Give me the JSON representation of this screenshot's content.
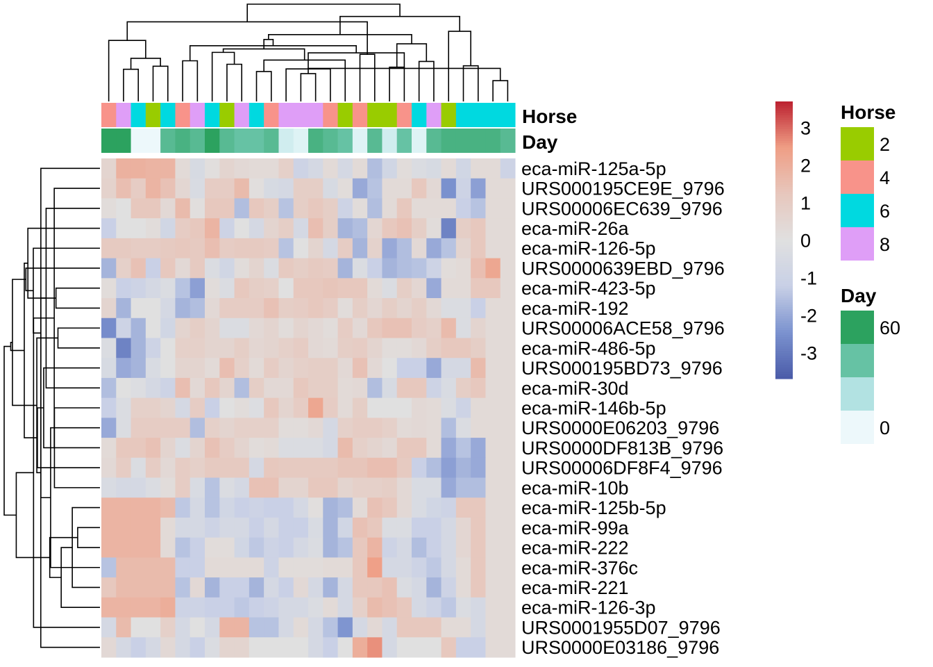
{
  "chart_data": {
    "type": "heatmap",
    "rows": [
      "eca-miR-125a-5p",
      "URS000195CE9E_9796",
      "URS00006EC639_9796",
      "eca-miR-26a",
      "eca-miR-126-5p",
      "URS0000639EBD_9796",
      "eca-miR-423-5p",
      "eca-miR-192",
      "URS00006ACE58_9796",
      "eca-miR-486-5p",
      "URS000195BD73_9796",
      "eca-miR-30d",
      "eca-miR-146b-5p",
      "URS0000E06203_9796",
      "URS0000DF813B_9796",
      "URS00006DF8F4_9796",
      "eca-miR-10b",
      "eca-miR-125b-5p",
      "eca-miR-99a",
      "eca-miR-222",
      "eca-miR-376c",
      "eca-miR-221",
      "eca-miR-126-3p",
      "URS0001955D07_9796",
      "URS0000E03186_9796"
    ],
    "values": [
      [
        0.6,
        1.9,
        1.9,
        1.8,
        1.8,
        0.3,
        -0.5,
        0.1,
        0.6,
        0.4,
        0.3,
        0.3,
        0.8,
        -1.0,
        -0.6,
        0.3,
        -0.6,
        0.3,
        -1.6,
        -0.8,
        0.2,
        -0.3,
        -0.5,
        0.3,
        -0.8,
        0.3,
        0.3,
        -1.0
      ],
      [
        0.7,
        1.5,
        1.0,
        1.8,
        1.4,
        0.5,
        -0.4,
        1.0,
        1.0,
        1.6,
        0.1,
        -0.5,
        -0.6,
        0.9,
        0.9,
        -0.5,
        0.2,
        -2.0,
        -1.5,
        0.3,
        0.3,
        1.2,
        0.4,
        -2.5,
        -1.0,
        -2.2,
        0.3,
        0.3
      ],
      [
        0.2,
        0.0,
        1.2,
        1.2,
        0.4,
        1.6,
        0.1,
        1.2,
        1.2,
        -1.6,
        1.2,
        0.9,
        -1.5,
        0.9,
        1.2,
        0.9,
        -1.0,
        0.2,
        -1.6,
        0.3,
        1.2,
        0.3,
        0.3,
        0.3,
        -1.2,
        -1.5,
        0.3,
        0.3
      ],
      [
        -1.2,
        0.0,
        0.0,
        0.2,
        -0.8,
        1.0,
        1.2,
        1.8,
        -1.0,
        0.0,
        -0.6,
        0.6,
        0.9,
        -0.6,
        1.5,
        0.9,
        -1.8,
        -1.6,
        0.5,
        1.2,
        1.4,
        0.9,
        0.2,
        -2.8,
        0.9,
        1.2,
        0.3,
        0.3
      ],
      [
        1.1,
        1.1,
        1.0,
        1.0,
        1.1,
        1.2,
        1.1,
        1.5,
        1.0,
        1.1,
        1.1,
        1.0,
        -1.5,
        0.0,
        0.6,
        -0.6,
        1.0,
        -1.8,
        0.7,
        -2.0,
        -1.6,
        0.4,
        -2.0,
        -1.5,
        0.6,
        1.2,
        0.3,
        0.3
      ],
      [
        -1.8,
        0.8,
        1.4,
        -1.2,
        1.2,
        0.4,
        1.1,
        -0.3,
        -0.8,
        0.2,
        0.6,
        -0.3,
        1.1,
        0.9,
        1.1,
        1.0,
        -1.8,
        -0.3,
        -1.2,
        -1.8,
        -1.6,
        -1.5,
        -1.0,
        0.2,
        0.3,
        1.5,
        2.2,
        0.3
      ],
      [
        0.2,
        -1.2,
        -1.0,
        -0.6,
        -0.3,
        -1.5,
        -2.2,
        0.2,
        -0.3,
        1.2,
        0.9,
        0.8,
        0.0,
        1.2,
        1.2,
        1.3,
        1.2,
        1.2,
        0.3,
        -0.3,
        0.9,
        0.5,
        -2.0,
        0.3,
        0.3,
        1.2,
        1.2,
        0.3
      ],
      [
        0.6,
        -1.8,
        0.0,
        0.0,
        -0.6,
        -1.8,
        -1.6,
        0.4,
        1.0,
        1.0,
        1.0,
        1.4,
        0.9,
        1.0,
        1.2,
        1.0,
        0.2,
        0.9,
        0.5,
        0.9,
        0.6,
        0.9,
        0.4,
        -0.3,
        -0.3,
        -1.2,
        0.3,
        0.3
      ],
      [
        -2.6,
        -1.0,
        -1.8,
        0.0,
        -0.8,
        0.6,
        0.9,
        0.6,
        -0.3,
        -0.3,
        0.4,
        0.6,
        0.2,
        0.6,
        0.4,
        0.2,
        1.0,
        0.4,
        1.2,
        1.4,
        1.4,
        1.0,
        0.8,
        1.6,
        -0.3,
        0.6,
        0.3,
        0.3
      ],
      [
        -0.3,
        -2.8,
        -1.8,
        -1.0,
        0.0,
        0.8,
        0.8,
        0.6,
        0.6,
        0.9,
        0.5,
        0.6,
        0.8,
        1.0,
        0.4,
        0.3,
        0.9,
        1.0,
        0.6,
        0.2,
        0.2,
        0.4,
        0.9,
        1.2,
        1.2,
        0.9,
        0.3,
        0.3
      ],
      [
        -0.5,
        -2.0,
        -1.8,
        -0.4,
        0.0,
        0.6,
        0.6,
        0.3,
        1.5,
        0.8,
        0.3,
        1.0,
        0.6,
        0.8,
        0.9,
        0.9,
        0.4,
        1.4,
        0.4,
        0.0,
        -1.2,
        -1.2,
        -2.0,
        -0.6,
        -0.6,
        1.6,
        0.3,
        0.3
      ],
      [
        -1.6,
        0.0,
        -0.2,
        -0.6,
        -1.0,
        1.5,
        0.4,
        1.2,
        0.6,
        -1.6,
        0.9,
        0.4,
        0.4,
        1.2,
        0.9,
        0.9,
        0.3,
        0.4,
        -1.6,
        -0.5,
        1.2,
        1.2,
        -1.0,
        -0.4,
        0.9,
        1.2,
        0.3,
        0.3
      ],
      [
        -1.2,
        -0.3,
        0.8,
        0.8,
        0.6,
        -0.6,
        1.0,
        -1.2,
        0.0,
        0.2,
        -0.2,
        1.2,
        0.6,
        1.0,
        2.2,
        1.0,
        0.3,
        0.9,
        0.0,
        0.0,
        0.0,
        0.4,
        0.3,
        -0.3,
        -1.0,
        0.3,
        0.3,
        0.3
      ],
      [
        -2.0,
        -0.3,
        1.0,
        1.0,
        1.0,
        1.0,
        -1.6,
        0.8,
        0.6,
        0.8,
        0.8,
        0.8,
        0.2,
        0.2,
        0.4,
        -0.6,
        0.8,
        1.0,
        1.0,
        0.8,
        0.3,
        0.4,
        0.3,
        -1.6,
        -0.3,
        0.3,
        0.3,
        0.3
      ],
      [
        0.3,
        1.2,
        1.2,
        1.4,
        0.6,
        -0.3,
        0.6,
        1.4,
        1.0,
        0.6,
        0.2,
        0.3,
        -0.3,
        -0.3,
        -0.3,
        -0.6,
        1.6,
        0.8,
        0.6,
        0.4,
        1.2,
        1.2,
        0.3,
        -2.0,
        -1.5,
        -2.0,
        0.3,
        0.3
      ],
      [
        0.4,
        1.0,
        -0.3,
        1.0,
        0.4,
        1.0,
        0.8,
        1.1,
        1.1,
        1.1,
        -0.6,
        1.2,
        1.1,
        1.1,
        1.1,
        1.1,
        1.3,
        1.3,
        1.5,
        1.5,
        1.1,
        -1.2,
        -1.6,
        -2.2,
        -1.8,
        -2.0,
        0.3,
        0.3
      ],
      [
        -0.4,
        -0.6,
        -0.6,
        -0.3,
        0.2,
        1.0,
        -0.4,
        -1.5,
        -0.3,
        -0.6,
        1.4,
        1.4,
        0.6,
        0.6,
        1.2,
        1.2,
        0.6,
        0.8,
        0.8,
        0.9,
        0.4,
        -0.4,
        -0.4,
        -2.0,
        -1.6,
        -1.6,
        0.3,
        0.3
      ],
      [
        1.8,
        1.8,
        1.8,
        1.8,
        1.6,
        -1.4,
        -0.6,
        -1.5,
        -0.8,
        -1.2,
        -1.0,
        -1.2,
        -1.2,
        -0.6,
        0.1,
        -1.8,
        -1.6,
        0.3,
        1.4,
        1.2,
        0.4,
        -0.4,
        -0.8,
        -1.0,
        1.2,
        1.2,
        0.3,
        0.3
      ],
      [
        1.8,
        1.8,
        1.8,
        1.8,
        0.3,
        -0.6,
        -0.6,
        -1.0,
        -0.6,
        -0.6,
        -1.2,
        -0.6,
        -1.2,
        -1.2,
        -0.4,
        -1.8,
        -0.8,
        1.4,
        1.2,
        -0.3,
        -0.3,
        -1.2,
        -1.2,
        -0.6,
        0.5,
        1.2,
        0.3,
        0.3
      ],
      [
        1.8,
        1.8,
        1.8,
        1.8,
        0.3,
        -1.5,
        -1.2,
        0.2,
        0.2,
        -0.8,
        -1.4,
        -1.0,
        -1.2,
        -0.6,
        -0.3,
        -1.8,
        -1.5,
        1.2,
        1.8,
        -1.0,
        -0.6,
        -1.6,
        -1.2,
        -0.6,
        0.5,
        1.2,
        0.3,
        0.3
      ],
      [
        -1.5,
        1.6,
        1.6,
        1.6,
        1.6,
        -1.2,
        -1.2,
        0.3,
        0.3,
        0.3,
        0.3,
        -1.0,
        0.2,
        0.2,
        0.2,
        0.3,
        0.3,
        1.2,
        2.4,
        -0.6,
        -0.6,
        -1.0,
        -1.4,
        -0.6,
        0.3,
        1.2,
        0.3,
        0.3
      ],
      [
        1.2,
        1.6,
        1.6,
        1.6,
        1.6,
        -1.5,
        0.4,
        -1.8,
        -1.2,
        -1.2,
        -1.8,
        -0.6,
        -1.2,
        0.4,
        -0.6,
        -1.8,
        -0.6,
        1.2,
        1.2,
        1.4,
        -0.3,
        -0.6,
        -1.8,
        -1.0,
        0.3,
        1.2,
        0.3,
        0.3
      ],
      [
        1.8,
        1.8,
        1.8,
        1.8,
        2.0,
        -1.0,
        -1.0,
        -1.2,
        -1.2,
        -1.4,
        -1.2,
        -1.0,
        -0.6,
        -0.6,
        -0.3,
        0.3,
        -0.6,
        0.8,
        1.6,
        1.4,
        1.2,
        -0.6,
        -1.0,
        -1.4,
        -0.3,
        -0.6,
        0.3,
        0.3
      ],
      [
        -0.6,
        1.6,
        0.0,
        0.0,
        0.8,
        -0.6,
        0.0,
        -0.6,
        1.8,
        1.8,
        -1.5,
        -1.5,
        -0.6,
        0.3,
        -0.6,
        -1.5,
        -2.4,
        -0.6,
        0.4,
        -0.6,
        1.2,
        1.2,
        1.2,
        0.3,
        0.3,
        -0.6,
        0.3,
        0.3
      ],
      [
        0.4,
        -0.6,
        -1.2,
        -0.6,
        0.4,
        -0.6,
        -1.2,
        -0.3,
        0.6,
        0.6,
        0.0,
        0.0,
        0.0,
        0.0,
        -0.6,
        -1.2,
        0.0,
        2.0,
        2.6,
        -0.6,
        0.0,
        0.0,
        0.0,
        1.2,
        -1.2,
        -1.2,
        0.3,
        0.3
      ]
    ],
    "col_annotations": {
      "Horse": [
        4,
        8,
        6,
        2,
        6,
        4,
        8,
        6,
        2,
        8,
        6,
        4,
        8,
        8,
        8,
        4,
        2,
        4,
        2,
        2,
        4,
        6,
        8,
        2,
        6,
        6,
        6,
        6
      ],
      "Day": [
        60,
        60,
        0,
        0,
        45,
        50,
        45,
        60,
        45,
        40,
        40,
        45,
        10,
        5,
        50,
        45,
        40,
        5,
        45,
        10,
        40,
        5,
        45,
        50,
        50,
        50,
        50,
        45
      ]
    },
    "color_scale": {
      "min": -3.7,
      "max": 3.7,
      "ticks": [
        "3",
        "2",
        "1",
        "0",
        "-1",
        "-2",
        "-3"
      ],
      "tick_values": [
        3,
        2,
        1,
        0,
        -1,
        -2,
        -3
      ],
      "colors": [
        "#4a5ba8",
        "#7b92cf",
        "#c8d0e6",
        "#e0e0e0",
        "#e7c7bd",
        "#ef9e85",
        "#bc2130"
      ]
    },
    "legends": {
      "horse": {
        "title": "Horse",
        "items": [
          {
            "label": "2",
            "color": "#99cc00"
          },
          {
            "label": "4",
            "color": "#f8938a"
          },
          {
            "label": "6",
            "color": "#00d9e0"
          },
          {
            "label": "8",
            "color": "#df9ef7"
          }
        ]
      },
      "day": {
        "title": "Day",
        "items": [
          {
            "label": "60",
            "color": "#2ca25f"
          },
          {
            "label": "",
            "color": "#66c2a4"
          },
          {
            "label": "",
            "color": "#b2e2e2"
          },
          {
            "label": "0",
            "color": "#edf8fb"
          }
        ]
      }
    },
    "annotation_labels": {
      "horse": "Horse",
      "day": "Day"
    },
    "row_dendrogram": true,
    "col_dendrogram": true
  }
}
